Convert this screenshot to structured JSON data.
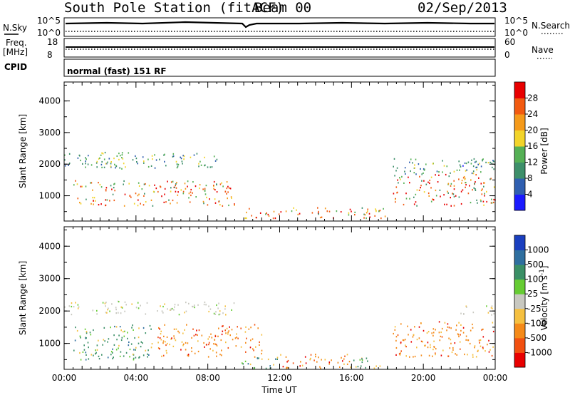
{
  "header": {
    "station": "South Pole Station (fitACF)",
    "beam": "Beam 00",
    "date": "02/Sep/2013"
  },
  "aux_panels": {
    "nsky_label": "N.Sky",
    "nsky_ticks": [
      "10^5",
      "10^0"
    ],
    "nsearch_label": "N.Search",
    "nsearch_ticks": [
      "10^5",
      "10^0"
    ],
    "freq_label_line1": "Freq.",
    "freq_label_line2": "[MHz]",
    "freq_ticks": [
      "18",
      "8"
    ],
    "nave_label": "Nave",
    "nave_ticks": [
      "60",
      "0"
    ],
    "cpid_label": "CPID",
    "cpid_text": "normal (fast) 151 RF"
  },
  "chart_data": [
    {
      "type": "heatmap",
      "name": "power",
      "ylabel": "Slant Range [km]",
      "xlabel": "",
      "yticks": [
        "1000",
        "2000",
        "3000",
        "4000"
      ],
      "ylim": [
        200,
        4600
      ],
      "xlim": [
        0,
        24
      ],
      "colorbar_label": "Power [dB]",
      "colorbar_ticks": [
        "4",
        "8",
        "12",
        "16",
        "20",
        "24",
        "28"
      ],
      "colorbar_colors": [
        "#1a1aff",
        "#2f5fb0",
        "#3d8f6a",
        "#55b055",
        "#f2d42a",
        "#f59a1a",
        "#f25a10",
        "#e80000"
      ],
      "scatter_bands": [
        {
          "t0": 0.0,
          "t1": 3.5,
          "r0": 1850,
          "r1": 2350,
          "level": "medium"
        },
        {
          "t0": 0.5,
          "t1": 9.5,
          "r0": 700,
          "r1": 1500,
          "level": "strong"
        },
        {
          "t0": 2.0,
          "t1": 8.5,
          "r0": 1900,
          "r1": 2400,
          "level": "medium"
        },
        {
          "t0": 10.0,
          "t1": 18.0,
          "r0": 300,
          "r1": 650,
          "level": "strong"
        },
        {
          "t0": 18.3,
          "t1": 24.0,
          "r0": 700,
          "r1": 1700,
          "level": "strong"
        },
        {
          "t0": 18.3,
          "t1": 24.0,
          "r0": 1700,
          "r1": 2200,
          "level": "medium"
        },
        {
          "t0": 22.0,
          "t1": 24.0,
          "r0": 1900,
          "r1": 2200,
          "level": "weak"
        }
      ]
    },
    {
      "type": "heatmap",
      "name": "velocity",
      "ylabel": "Slant Range [km]",
      "xlabel": "Time UT",
      "xticks": [
        "00:00",
        "04:00",
        "08:00",
        "12:00",
        "16:00",
        "20:00",
        "00:00"
      ],
      "yticks": [
        "1000",
        "2000",
        "3000",
        "4000"
      ],
      "ylim": [
        200,
        4600
      ],
      "xlim": [
        0,
        24
      ],
      "colorbar_label": "Velocity [m s",
      "colorbar_label_sup": "-1",
      "colorbar_label_end": "]",
      "colorbar_ticks": [
        "1000",
        "500",
        "100",
        "25",
        "-25",
        "-100",
        "-500",
        "-1000"
      ],
      "colorbar_colors": [
        "#1a3fbf",
        "#2f6f9f",
        "#3a8f66",
        "#66cc33",
        "#c8c8c0",
        "#f5c040",
        "#f58a18",
        "#f25010",
        "#e80000"
      ],
      "scatter_bands": [
        {
          "t0": 0.0,
          "t1": 3.5,
          "r0": 1900,
          "r1": 2350,
          "level": "grey"
        },
        {
          "t0": 3.5,
          "t1": 9.5,
          "r0": 1900,
          "r1": 2300,
          "level": "grey"
        },
        {
          "t0": 0.5,
          "t1": 5.0,
          "r0": 500,
          "r1": 1600,
          "level": "green"
        },
        {
          "t0": 5.0,
          "t1": 11.0,
          "r0": 600,
          "r1": 1600,
          "level": "orange"
        },
        {
          "t0": 9.5,
          "t1": 12.0,
          "r0": 250,
          "r1": 600,
          "level": "green"
        },
        {
          "t0": 12.0,
          "t1": 16.0,
          "r0": 250,
          "r1": 700,
          "level": "orange"
        },
        {
          "t0": 16.0,
          "t1": 18.0,
          "r0": 250,
          "r1": 600,
          "level": "green"
        },
        {
          "t0": 18.3,
          "t1": 24.0,
          "r0": 600,
          "r1": 1700,
          "level": "orange"
        },
        {
          "t0": 22.0,
          "t1": 24.0,
          "r0": 1900,
          "r1": 2200,
          "level": "grey"
        }
      ]
    }
  ]
}
